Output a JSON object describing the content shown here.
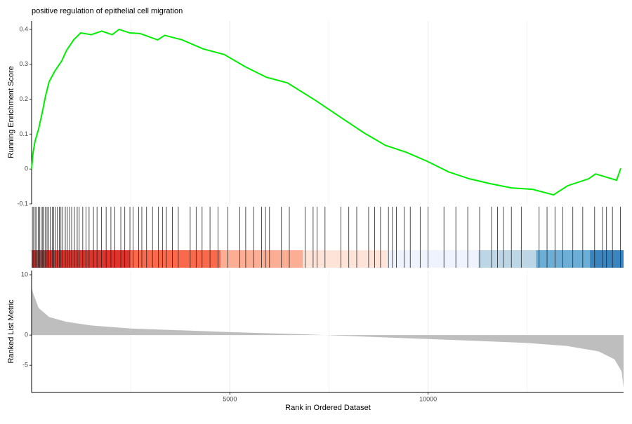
{
  "chart_data": [
    {
      "type": "line",
      "title": "positive regulation of epithelial cell migration",
      "ylabel": "Running Enrichment Score",
      "xlim": [
        0,
        14930
      ],
      "ylim": [
        -0.1,
        0.424
      ],
      "yticks": [
        -0.1,
        0.0,
        0.1,
        0.2,
        0.3,
        0.4
      ],
      "grid": true,
      "series": [
        {
          "color": "#00ee00",
          "x": [
            0,
            35,
            88,
            177,
            265,
            353,
            442,
            583,
            760,
            883,
            1060,
            1237,
            1502,
            1767,
            2032,
            2208,
            2473,
            2739,
            3180,
            3357,
            3799,
            4329,
            4859,
            5389,
            5919,
            6449,
            7155,
            7862,
            8392,
            8922,
            9452,
            9982,
            10512,
            11042,
            11572,
            12102,
            12633,
            13163,
            13516,
            14046,
            14223,
            14753,
            14859
          ],
          "values": [
            0.0,
            0.046,
            0.08,
            0.115,
            0.16,
            0.21,
            0.25,
            0.28,
            0.31,
            0.34,
            0.37,
            0.39,
            0.385,
            0.395,
            0.385,
            0.4,
            0.39,
            0.388,
            0.37,
            0.383,
            0.37,
            0.344,
            0.328,
            0.293,
            0.263,
            0.247,
            0.197,
            0.143,
            0.103,
            0.068,
            0.048,
            0.022,
            -0.008,
            -0.028,
            -0.042,
            -0.054,
            -0.058,
            -0.074,
            -0.048,
            -0.028,
            -0.014,
            -0.032,
            0.002
          ]
        }
      ]
    },
    {
      "type": "rug",
      "xlim": [
        0,
        14930
      ],
      "color": "#222222",
      "x": [
        20,
        50,
        90,
        130,
        170,
        200,
        240,
        280,
        310,
        350,
        390,
        430,
        470,
        520,
        560,
        600,
        650,
        700,
        740,
        790,
        850,
        900,
        960,
        1010,
        1080,
        1150,
        1200,
        1290,
        1370,
        1450,
        1560,
        1650,
        1760,
        1880,
        2000,
        2100,
        2250,
        2350,
        2480,
        2560,
        2700,
        2780,
        2900,
        3050,
        3200,
        3300,
        3400,
        3550,
        3700,
        4000,
        4150,
        4300,
        4500,
        4700,
        4950,
        5250,
        5400,
        5600,
        5800,
        5900,
        6000,
        6300,
        6500,
        6900,
        7100,
        7200,
        7400,
        7800,
        8000,
        8200,
        8500,
        8650,
        8800,
        9000,
        9100,
        9200,
        9400,
        9550,
        9800,
        10000,
        10400,
        10700,
        11000,
        11300,
        11600,
        11750,
        11900,
        12100,
        12350,
        12800,
        13000,
        13200,
        13400,
        13650,
        13900,
        14200,
        14400,
        14500,
        14650,
        14850
      ],
      "band_breaks": [
        0,
        2491,
        4770,
        6837,
        8958,
        11272,
        12721,
        14081,
        14930
      ],
      "band_colors": [
        "#e0332c",
        "#f96a4d",
        "#fcae94",
        "#fde3d8",
        "#eef3fd",
        "#bdd6e6",
        "#6caed5",
        "#3a85c0"
      ]
    },
    {
      "type": "area",
      "ylabel": "Ranked List Metric",
      "xlabel": "Rank in Ordered Dataset",
      "color": "#bebebe",
      "xlim": [
        0,
        14930
      ],
      "ylim": [
        -9.5,
        10.7
      ],
      "yticks": [
        -5,
        0,
        10
      ],
      "xticks": [
        5000,
        10000
      ],
      "xminor": [
        2500,
        7500,
        12500
      ],
      "grid": true,
      "x": [
        0,
        35,
        177,
        442,
        883,
        1500,
        2500,
        5000,
        7000,
        7400,
        9000,
        11000,
        12500,
        13500,
        14300,
        14700,
        14880,
        14930
      ],
      "values": [
        8,
        7,
        4.5,
        3,
        2.2,
        1.6,
        1.1,
        0.5,
        0.1,
        0,
        -0.4,
        -0.9,
        -1.3,
        -1.8,
        -2.7,
        -4,
        -6,
        -8.7
      ]
    }
  ]
}
